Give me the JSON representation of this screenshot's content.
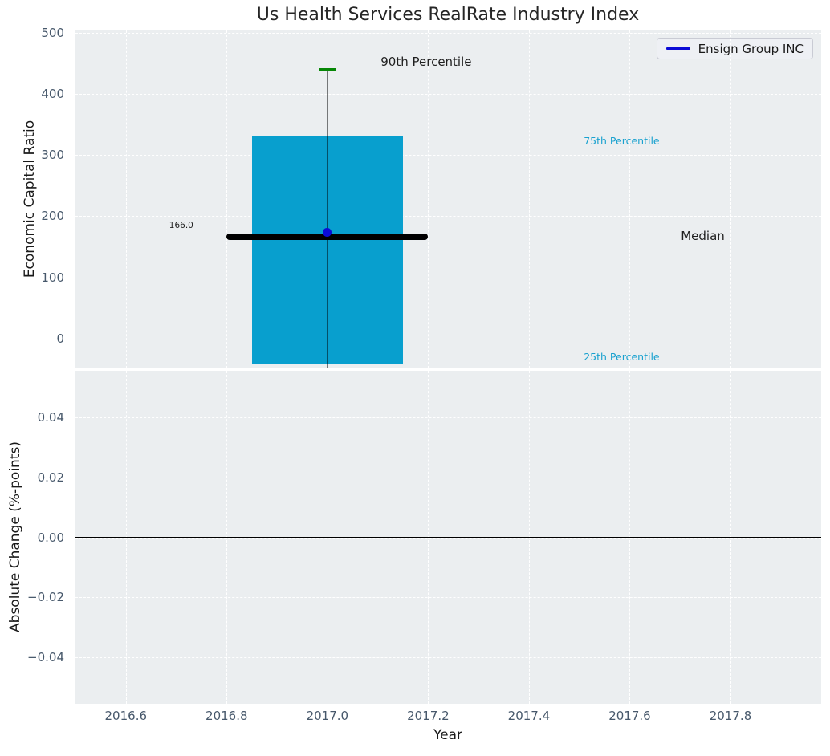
{
  "title": "Us Health Services RealRate Industry Index",
  "legend": {
    "label": "Ensign Group INC"
  },
  "colors": {
    "figure_bg": "#ffffff",
    "axes_bg": "#ebeef0",
    "grid": "#ffffff",
    "tick_label": "#47586b",
    "title_text": "#262626",
    "axis_label_text": "#1a1a1a",
    "bar": "#089fce",
    "median_line": "#000000",
    "whisker": "rgba(0,0,0,0.5)",
    "p90_cap": "#068706",
    "company_blue": "#0b0bd6",
    "legend_bg": "#eef0f4",
    "legend_border": "#c9cbd4",
    "annotation_dark": "#1f1f1f",
    "annotation_cyan": "#18a1cf",
    "zero_line": "#000000"
  },
  "chart_data": [
    {
      "type": "bar",
      "panel": "economic-capital-ratio",
      "title": "Us Health Services RealRate Industry Index",
      "ylabel": "Economic Capital Ratio",
      "xlim": [
        2016.5,
        2017.98
      ],
      "ylim": [
        -48.5,
        503.5
      ],
      "grid": true,
      "legend_position": "upper right",
      "yticks": [
        {
          "v": 500,
          "label": "500"
        },
        {
          "v": 400,
          "label": "400"
        },
        {
          "v": 300,
          "label": "300"
        },
        {
          "v": 200,
          "label": "200"
        },
        {
          "v": 100,
          "label": "100"
        },
        {
          "v": 0,
          "label": "0"
        }
      ],
      "industry_distribution": {
        "x": 2017.0,
        "p25": -40,
        "median": 166,
        "p75": 330,
        "p90": 440,
        "whisker_low_clip": -48.5,
        "bar_width": 0.3,
        "median_span": 0.4,
        "median_value_label": "166.0"
      },
      "company_series": {
        "name": "Ensign Group INC",
        "points": [
          {
            "x": 2017.0,
            "y": 174
          }
        ]
      },
      "annotations": [
        {
          "name": "p90-percentile-label",
          "text": "90th Percentile",
          "x": 2017.196,
          "y": 452,
          "size": 15,
          "color": "dark"
        },
        {
          "name": "median-value-label",
          "text": "166.0",
          "x": 2016.71,
          "y": 184,
          "size": 10.5,
          "color": "dark"
        },
        {
          "name": "p75-percentile-label",
          "text": "75th Percentile",
          "x": 2017.584,
          "y": 322,
          "size": 12.5,
          "color": "cyan"
        },
        {
          "name": "median-label",
          "text": "Median",
          "x": 2017.745,
          "y": 168,
          "size": 15,
          "color": "dark"
        },
        {
          "name": "p25-percentile-label",
          "text": "25th Percentile",
          "x": 2017.584,
          "y": -30,
          "size": 12.5,
          "color": "cyan"
        }
      ]
    },
    {
      "type": "line",
      "panel": "absolute-change",
      "ylabel": "Absolute Change (%-points)",
      "xlabel": "Year",
      "xlim": [
        2016.5,
        2017.98
      ],
      "ylim": [
        -0.0555,
        0.0555
      ],
      "grid": true,
      "zero_line": 0.0,
      "yticks": [
        {
          "v": 0.04,
          "label": "0.04"
        },
        {
          "v": 0.02,
          "label": "0.02"
        },
        {
          "v": 0.0,
          "label": "0.00"
        },
        {
          "v": -0.02,
          "label": "−0.02"
        },
        {
          "v": -0.04,
          "label": "−0.04"
        }
      ],
      "xticks": [
        {
          "v": 2016.6,
          "label": "2016.6"
        },
        {
          "v": 2016.8,
          "label": "2016.8"
        },
        {
          "v": 2017.0,
          "label": "2017.0"
        },
        {
          "v": 2017.2,
          "label": "2017.2"
        },
        {
          "v": 2017.4,
          "label": "2017.4"
        },
        {
          "v": 2017.6,
          "label": "2017.6"
        },
        {
          "v": 2017.8,
          "label": "2017.8"
        }
      ],
      "series": []
    }
  ]
}
